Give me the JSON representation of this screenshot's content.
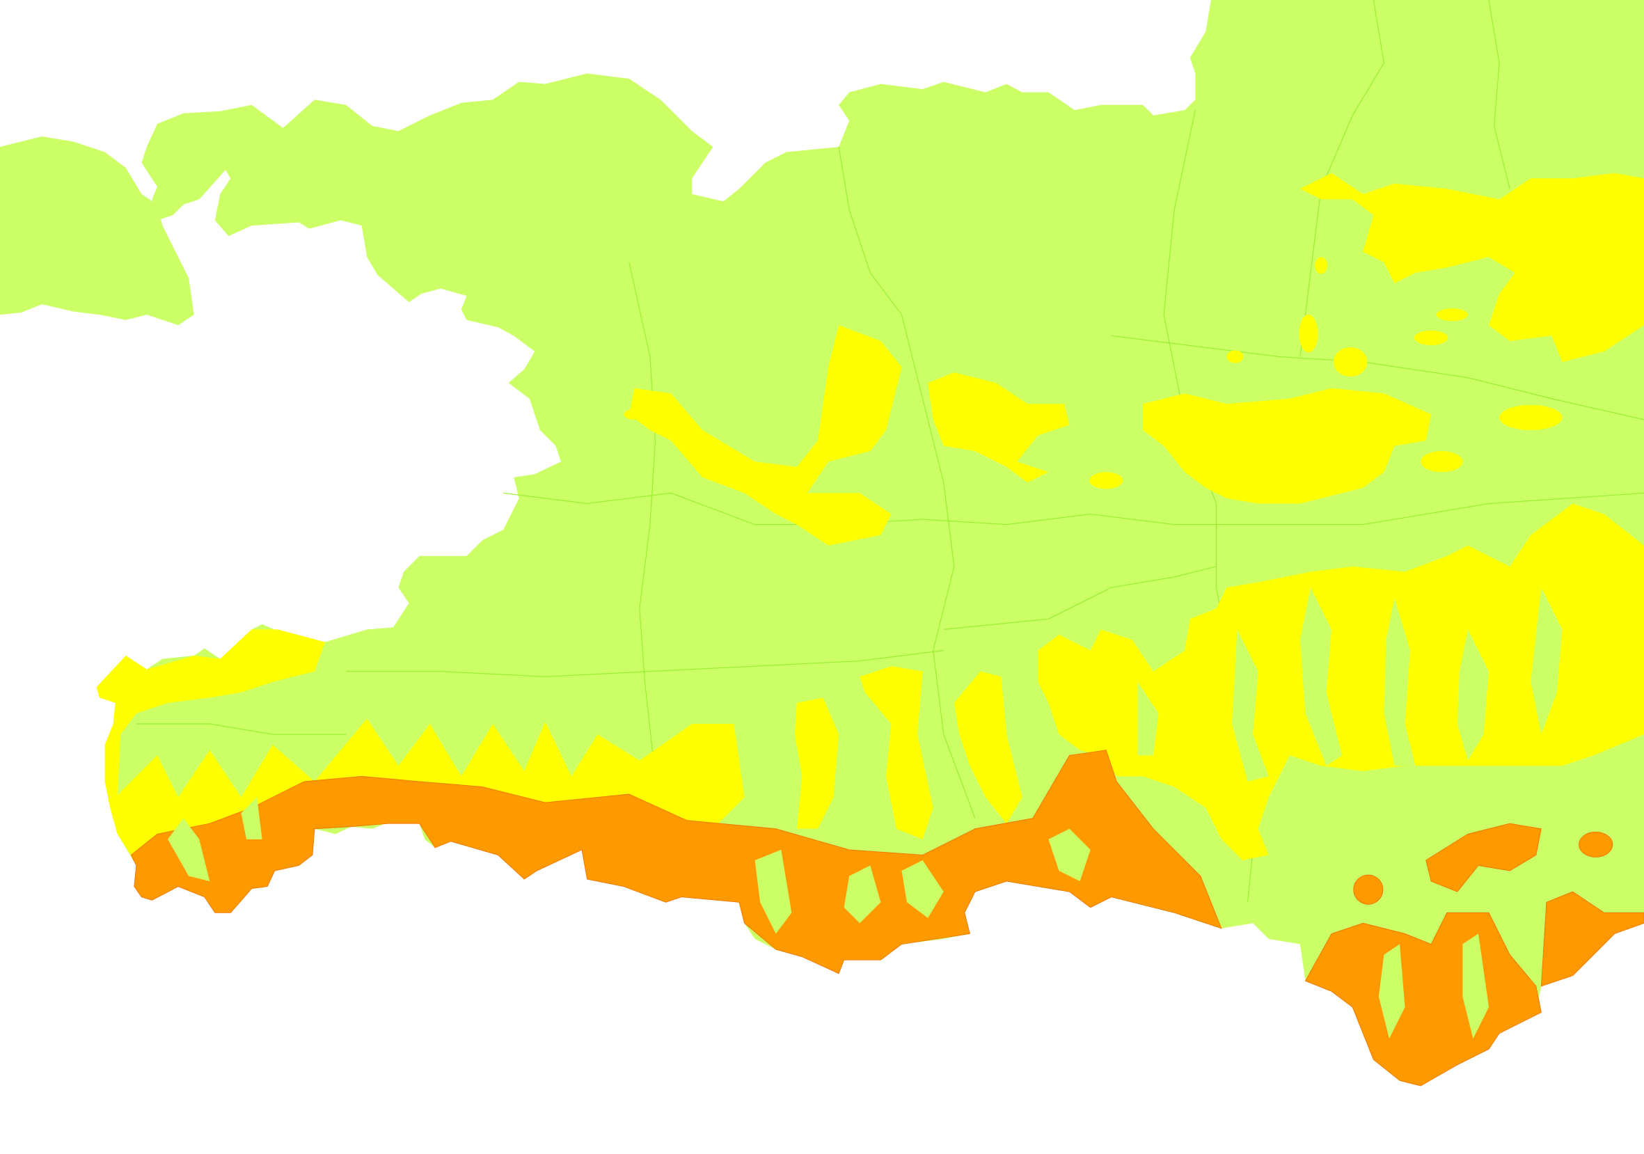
{
  "map": {
    "colors": {
      "background": "#ffffff",
      "low_class": "#ccff66",
      "mid_class": "#ffff00",
      "high_class": "#ff9900",
      "boundary_line": "#99ee33",
      "high_class_boundary": "#ff6600"
    },
    "classes": [
      "low_class",
      "mid_class",
      "high_class"
    ]
  }
}
